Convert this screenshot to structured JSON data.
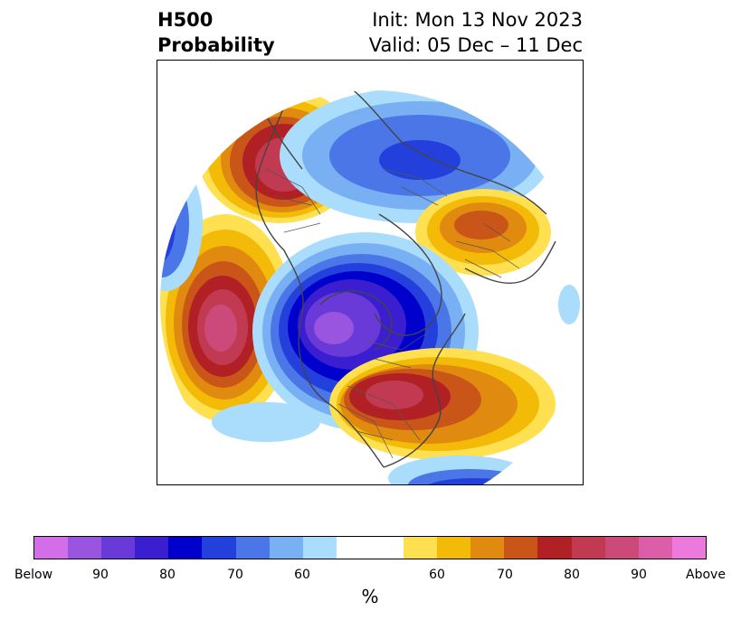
{
  "title": {
    "left_line1": "H500",
    "left_line2": "Probability",
    "right_line1": "Init: Mon 13 Nov 2023",
    "right_line2": "Valid: 05 Dec – 11 Dec"
  },
  "colors": {
    "below": [
      "#d36ee8",
      "#9a55e0",
      "#6a3ad8",
      "#3a1ecf",
      "#0000cd",
      "#2440dc",
      "#4a76e8",
      "#78b0f3",
      "#aadcfb"
    ],
    "neutral": "#ffffff",
    "above": [
      "#ffe050",
      "#f3bb08",
      "#e08a10",
      "#c95518",
      "#b02025",
      "#c23a52",
      "#cc4a7a",
      "#dc5ea8",
      "#ec7adc"
    ]
  },
  "colorbar": {
    "tick_labels": [
      "Below",
      "90",
      "80",
      "70",
      "60",
      "60",
      "70",
      "80",
      "90",
      "Above"
    ],
    "unit_label": "%"
  }
}
